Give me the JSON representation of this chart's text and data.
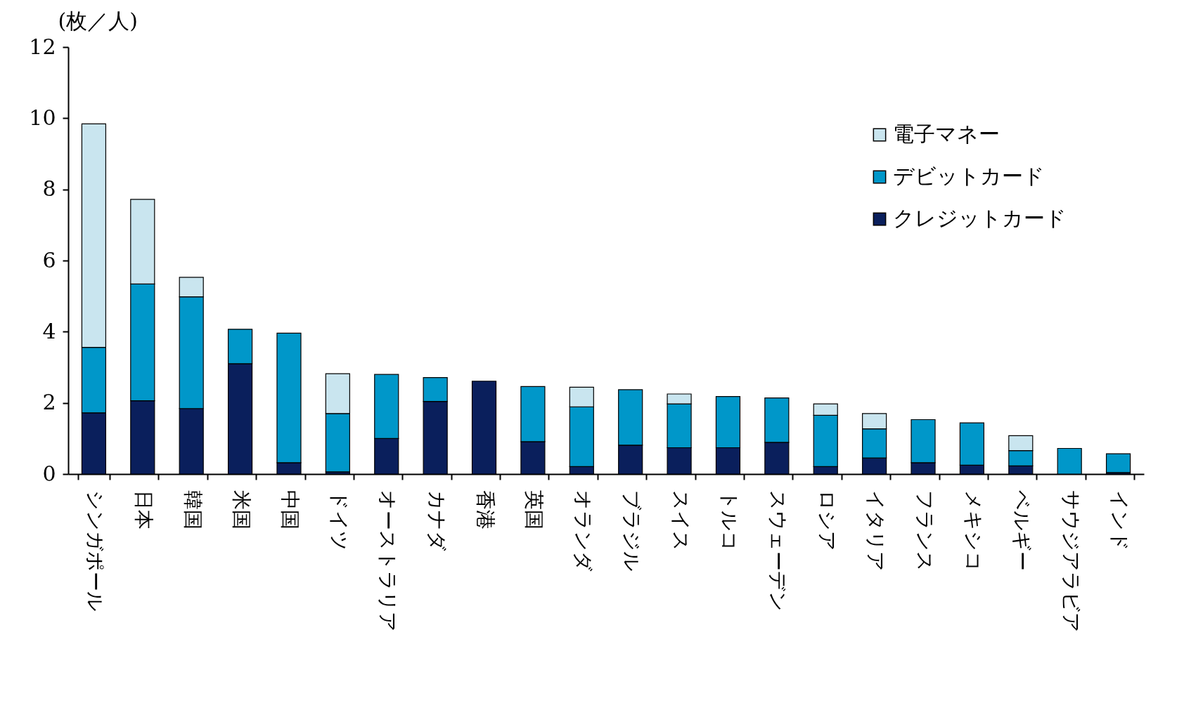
{
  "chart_data": {
    "type": "bar",
    "stacked": true,
    "ylabel": "(枚／人)",
    "categories": [
      "シンガポール",
      "日本",
      "韓国",
      "米国",
      "中国",
      "ドイツ",
      "オーストラリア",
      "カナダ",
      "香港",
      "英国",
      "オランダ",
      "ブラジル",
      "スイス",
      "トルコ",
      "スウェーデン",
      "ロシア",
      "イタリア",
      "フランス",
      "メキシコ",
      "ベルギー",
      "サウジアラビア",
      "インド"
    ],
    "series": [
      {
        "name": "クレジットカード",
        "color": "#0a1f5c",
        "values": [
          1.72,
          2.06,
          1.84,
          3.1,
          0.32,
          0.06,
          1.0,
          2.04,
          2.61,
          0.91,
          0.21,
          0.81,
          0.74,
          0.74,
          0.89,
          0.21,
          0.45,
          0.32,
          0.25,
          0.23,
          null,
          0.04
        ]
      },
      {
        "name": "デビットカード",
        "color": "#0097c9",
        "values": [
          1.84,
          3.28,
          3.14,
          0.97,
          3.64,
          1.64,
          1.8,
          0.67,
          null,
          1.55,
          1.68,
          1.56,
          1.23,
          1.44,
          1.25,
          1.44,
          0.82,
          1.21,
          1.19,
          0.43,
          0.72,
          0.53
        ]
      },
      {
        "name": "電子マネー",
        "color": "#c9e5ef",
        "values": [
          6.28,
          2.38,
          0.55,
          null,
          null,
          1.12,
          null,
          null,
          null,
          null,
          0.55,
          null,
          0.28,
          null,
          null,
          0.32,
          0.43,
          null,
          null,
          0.42,
          null,
          null
        ]
      }
    ],
    "ylim": [
      0,
      12
    ],
    "yticks": [
      0,
      2,
      4,
      6,
      8,
      10,
      12
    ],
    "legend": "top right",
    "grid": false
  }
}
